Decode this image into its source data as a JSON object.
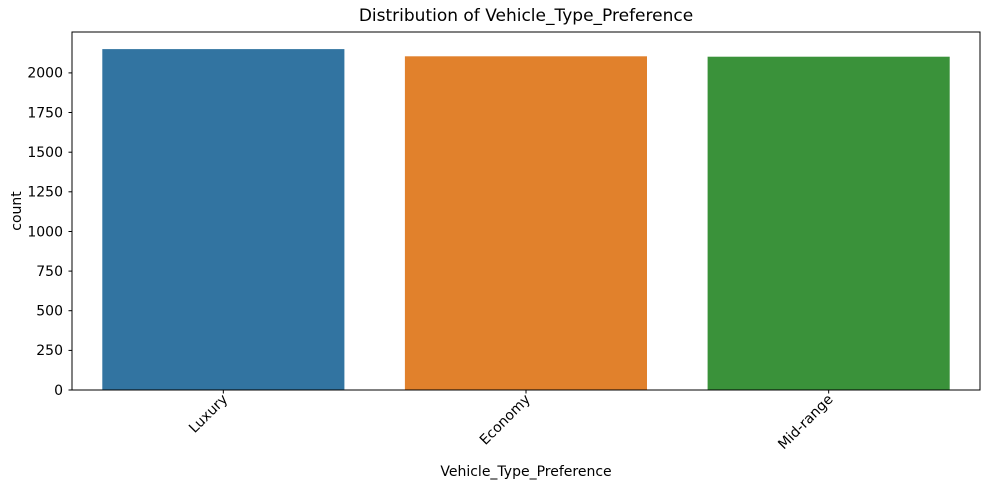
{
  "chart_data": {
    "type": "bar",
    "title": "Distribution of Vehicle_Type_Preference",
    "xlabel": "Vehicle_Type_Preference",
    "ylabel": "count",
    "categories": [
      "Luxury",
      "Economy",
      "Mid-range"
    ],
    "values": [
      2150,
      2105,
      2102
    ],
    "bar_colors": [
      "#3274a1",
      "#e1812c",
      "#3a923a"
    ],
    "ylim": [
      0,
      2258
    ],
    "yticks": [
      0,
      250,
      500,
      750,
      1000,
      1250,
      1500,
      1750,
      2000
    ],
    "xtick_rotation_deg": 45,
    "grid": false,
    "legend_position": "none",
    "spine_color": "#000000",
    "background_color": "#ffffff",
    "bar_rel_width": 0.8
  }
}
